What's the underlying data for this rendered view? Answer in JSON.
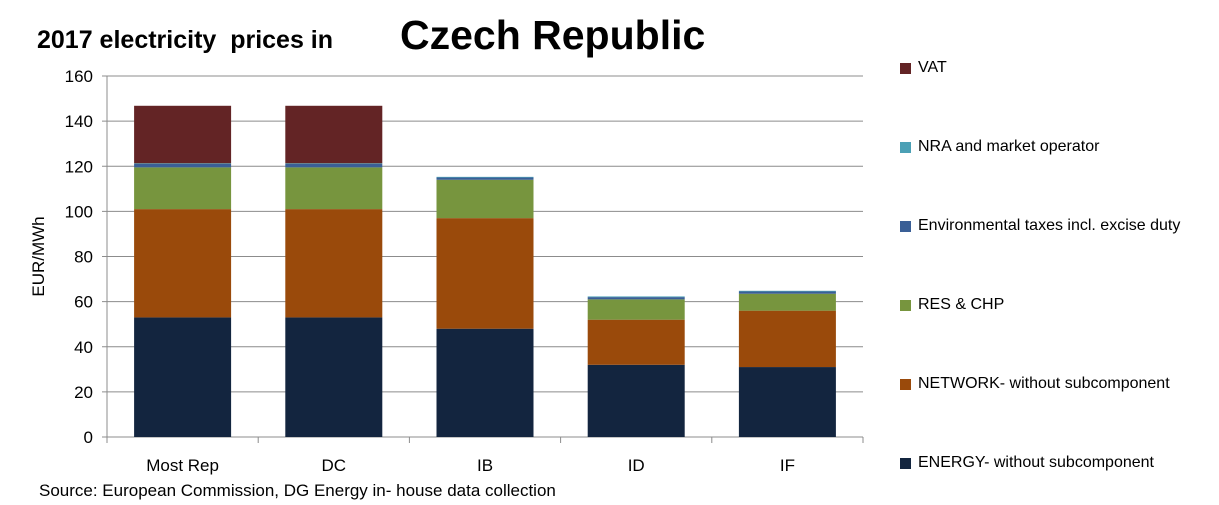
{
  "chart_data": {
    "type": "bar",
    "stacked": true,
    "title": "2017 electricity  prices in",
    "title_country": "Czech Republic",
    "ylabel": "EUR/MWh",
    "xlabel": "",
    "ylim": [
      0,
      160
    ],
    "yticks": [
      0,
      20,
      40,
      60,
      80,
      100,
      120,
      140,
      160
    ],
    "grid": true,
    "legend_position": "right",
    "categories": [
      "Most Rep",
      "DC",
      "IB",
      "ID",
      "IF"
    ],
    "series": [
      {
        "name": "ENERGY- without subcomponent",
        "color": "#13253F",
        "values": [
          53,
          53,
          48,
          32,
          31
        ]
      },
      {
        "name": "NETWORK- without subcomponent",
        "color": "#9A4A0B",
        "values": [
          48,
          48,
          49,
          20,
          25
        ]
      },
      {
        "name": "RES & CHP",
        "color": "#77953E",
        "values": [
          18.5,
          18.5,
          17,
          9,
          7.5
        ]
      },
      {
        "name": "Environmental taxes incl. excise duty",
        "color": "#3A5F96",
        "values": [
          1.5,
          1.5,
          1,
          1,
          1
        ]
      },
      {
        "name": "NRA and market operator",
        "color": "#4BA0B5",
        "values": [
          0.3,
          0.3,
          0.3,
          0.3,
          0.3
        ]
      },
      {
        "name": "VAT",
        "color": "#632425",
        "values": [
          25.5,
          25.5,
          0,
          0,
          0
        ]
      }
    ],
    "source": "Source: European Commission, DG Energy in- house data collection"
  }
}
